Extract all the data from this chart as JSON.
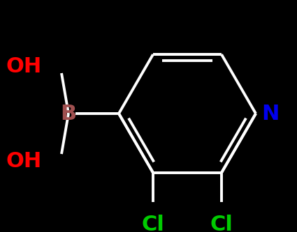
{
  "background_color": "#000000",
  "bond_color": "#ffffff",
  "bond_width": 2.8,
  "atom_labels": {
    "N": {
      "text": "N",
      "color": "#0000ee",
      "fontsize": 22,
      "fontweight": "bold"
    },
    "B": {
      "text": "B",
      "color": "#a05050",
      "fontsize": 22,
      "fontweight": "bold"
    },
    "OH1": {
      "text": "OH",
      "color": "#ff0000",
      "fontsize": 22,
      "fontweight": "bold"
    },
    "OH2": {
      "text": "OH",
      "color": "#ff0000",
      "fontsize": 22,
      "fontweight": "bold"
    },
    "Cl1": {
      "text": "Cl",
      "color": "#00cc00",
      "fontsize": 22,
      "fontweight": "bold"
    },
    "Cl2": {
      "text": "Cl",
      "color": "#00cc00",
      "fontsize": 22,
      "fontweight": "bold"
    }
  },
  "figsize": [
    4.25,
    3.33
  ],
  "dpi": 100,
  "xlim": [
    0,
    425
  ],
  "ylim": [
    0,
    333
  ]
}
